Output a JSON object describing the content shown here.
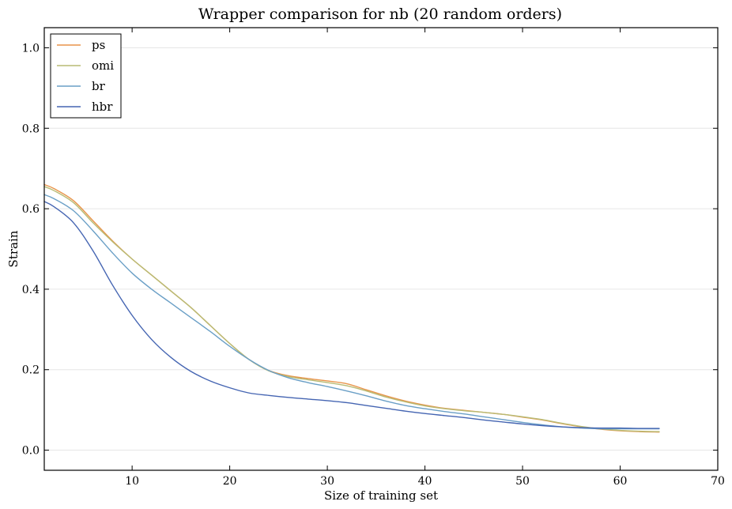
{
  "chart_data": {
    "type": "line",
    "title": "Wrapper comparison for nb (20 random orders)",
    "xlabel": "Size of training set",
    "ylabel": "Strain",
    "xlim": [
      1,
      70
    ],
    "ylim": [
      -0.05,
      1.05
    ],
    "xticks": [
      10,
      20,
      30,
      40,
      50,
      60,
      70
    ],
    "yticks": [
      0.0,
      0.2,
      0.4,
      0.6,
      0.8,
      1.0
    ],
    "xtick_labels": [
      "10",
      "20",
      "30",
      "40",
      "50",
      "60",
      "70"
    ],
    "ytick_labels": [
      "0.0",
      "0.2",
      "0.4",
      "0.6",
      "0.8",
      "1.0"
    ],
    "grid": "horizontal",
    "legend_position": "top-left",
    "x": [
      1,
      2,
      4,
      6,
      8,
      10,
      12,
      14,
      16,
      18,
      20,
      22,
      24,
      26,
      28,
      30,
      32,
      34,
      36,
      38,
      40,
      42,
      44,
      46,
      48,
      50,
      52,
      54,
      56,
      58,
      60,
      62,
      64
    ],
    "series": [
      {
        "name": "ps",
        "color": "#e8944a",
        "values": [
          0.66,
          0.65,
          0.62,
          0.57,
          0.52,
          0.475,
          0.435,
          0.395,
          0.355,
          0.31,
          0.265,
          0.225,
          0.198,
          0.185,
          0.178,
          0.172,
          0.165,
          0.15,
          0.135,
          0.122,
          0.112,
          0.104,
          0.099,
          0.094,
          0.089,
          0.082,
          0.075,
          0.066,
          0.058,
          0.052,
          0.048,
          0.046,
          0.045
        ]
      },
      {
        "name": "omi",
        "color": "#b8bb74",
        "values": [
          0.655,
          0.645,
          0.615,
          0.565,
          0.518,
          0.475,
          0.435,
          0.395,
          0.355,
          0.31,
          0.265,
          0.225,
          0.197,
          0.183,
          0.175,
          0.168,
          0.16,
          0.147,
          0.132,
          0.12,
          0.11,
          0.103,
          0.098,
          0.094,
          0.089,
          0.083,
          0.076,
          0.067,
          0.059,
          0.053,
          0.049,
          0.047,
          0.046
        ]
      },
      {
        "name": "br",
        "color": "#6a9fc6",
        "values": [
          0.635,
          0.625,
          0.595,
          0.545,
          0.49,
          0.44,
          0.4,
          0.365,
          0.33,
          0.295,
          0.258,
          0.225,
          0.198,
          0.18,
          0.168,
          0.158,
          0.147,
          0.135,
          0.122,
          0.111,
          0.103,
          0.096,
          0.09,
          0.083,
          0.076,
          0.069,
          0.063,
          0.058,
          0.055,
          0.053,
          0.053,
          0.053,
          0.053
        ]
      },
      {
        "name": "hbr",
        "color": "#4565b2",
        "values": [
          0.618,
          0.605,
          0.565,
          0.495,
          0.41,
          0.335,
          0.275,
          0.23,
          0.196,
          0.172,
          0.155,
          0.142,
          0.136,
          0.131,
          0.127,
          0.123,
          0.118,
          0.111,
          0.104,
          0.097,
          0.091,
          0.086,
          0.081,
          0.075,
          0.07,
          0.065,
          0.061,
          0.058,
          0.056,
          0.055,
          0.055,
          0.054,
          0.054
        ]
      }
    ]
  }
}
